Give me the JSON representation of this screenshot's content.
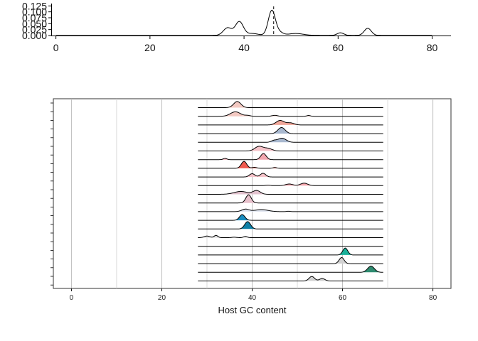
{
  "chart_data": [
    {
      "type": "area",
      "title": "",
      "xlabel": "",
      "ylabel": "",
      "xlim": [
        -1,
        84
      ],
      "ylim": [
        0,
        0.135
      ],
      "x_ticks": [
        0,
        20,
        40,
        60,
        80
      ],
      "y_ticks": [
        0.0,
        0.025,
        0.05,
        0.075,
        0.1,
        0.125
      ],
      "y_tick_labels": [
        "0.000",
        "0.025",
        "0.050",
        "0.075",
        "0.100",
        "0.125"
      ],
      "grid": false,
      "density_peaks": [
        {
          "x": 36.5,
          "y": 0.032,
          "sd": 0.9
        },
        {
          "x": 39,
          "y": 0.058,
          "sd": 0.85
        },
        {
          "x": 41.8,
          "y": 0.008,
          "sd": 1.2
        },
        {
          "x": 45.9,
          "y": 0.105,
          "sd": 0.75
        },
        {
          "x": 47.5,
          "y": 0.012,
          "sd": 0.8
        },
        {
          "x": 51,
          "y": 0.008,
          "sd": 1.6
        },
        {
          "x": 60.5,
          "y": 0.011,
          "sd": 0.7
        },
        {
          "x": 66.3,
          "y": 0.03,
          "sd": 0.75
        }
      ],
      "reference_line": {
        "x": 46.3,
        "style": "dashed"
      }
    },
    {
      "type": "area",
      "title": "",
      "xlabel": "Host GC content",
      "ylabel": "",
      "xlim": [
        -4,
        84
      ],
      "x_ticks": [
        0,
        20,
        40,
        60,
        80
      ],
      "grid": true,
      "legend": "none",
      "ridge_range": [
        28,
        69
      ],
      "ridges": [
        {
          "color": "#f3c9c2",
          "peaks": [
            {
              "x": 36.7,
              "h": 0.75,
              "sd": 0.8
            }
          ]
        },
        {
          "color": "#f3c9c2",
          "peaks": [
            {
              "x": 36.3,
              "h": 0.55,
              "sd": 1.1
            },
            {
              "x": 39,
              "h": 0.1,
              "sd": 0.6
            },
            {
              "x": 45,
              "h": 0.12,
              "sd": 0.6
            },
            {
              "x": 52.5,
              "h": 0.1,
              "sd": 0.4
            }
          ]
        },
        {
          "color": "#f1a79a",
          "peaks": [
            {
              "x": 46.2,
              "h": 0.55,
              "sd": 0.9
            },
            {
              "x": 48.5,
              "h": 0.25,
              "sd": 0.8
            }
          ]
        },
        {
          "color": "#a8b8cf",
          "peaks": [
            {
              "x": 46.5,
              "h": 0.75,
              "sd": 0.8
            }
          ]
        },
        {
          "color": "#a8b8cf",
          "peaks": [
            {
              "x": 46.6,
              "h": 0.5,
              "sd": 0.9
            },
            {
              "x": 44.8,
              "h": 0.2,
              "sd": 0.6
            }
          ]
        },
        {
          "color": "#f6c3c9",
          "peaks": [
            {
              "x": 41.5,
              "h": 0.55,
              "sd": 0.9
            },
            {
              "x": 43.5,
              "h": 0.3,
              "sd": 0.9
            }
          ]
        },
        {
          "color": "#f2a6ae",
          "peaks": [
            {
              "x": 42.5,
              "h": 0.75,
              "sd": 0.6
            },
            {
              "x": 34,
              "h": 0.15,
              "sd": 0.4
            }
          ]
        },
        {
          "color": "#ef5a4f",
          "peaks": [
            {
              "x": 38.2,
              "h": 0.85,
              "sd": 0.6
            },
            {
              "x": 40.5,
              "h": 0.12,
              "sd": 0.5
            },
            {
              "x": 45,
              "h": 0.1,
              "sd": 0.4
            }
          ]
        },
        {
          "color": "#f6c3c9",
          "peaks": [
            {
              "x": 40,
              "h": 0.4,
              "sd": 0.6
            },
            {
              "x": 42.4,
              "h": 0.45,
              "sd": 0.6
            }
          ]
        },
        {
          "color": "#f3a4ab",
          "peaks": [
            {
              "x": 48.2,
              "h": 0.2,
              "sd": 0.8
            },
            {
              "x": 51.5,
              "h": 0.3,
              "sd": 0.8
            },
            {
              "x": 43.5,
              "h": 0.05,
              "sd": 0.5
            }
          ]
        },
        {
          "color": "#e3c3cf",
          "peaks": [
            {
              "x": 37.5,
              "h": 0.35,
              "sd": 1.5
            },
            {
              "x": 41,
              "h": 0.45,
              "sd": 0.8
            }
          ]
        },
        {
          "color": "#e7c0cb",
          "peaks": [
            {
              "x": 39.2,
              "h": 1.0,
              "sd": 0.6
            }
          ]
        },
        {
          "color": "#dde3ee",
          "peaks": [
            {
              "x": 38.5,
              "h": 0.3,
              "sd": 0.8
            },
            {
              "x": 42,
              "h": 0.25,
              "sd": 1.5
            },
            {
              "x": 48,
              "h": 0.05,
              "sd": 0.4
            }
          ]
        },
        {
          "color": "#1a8dc0",
          "peaks": [
            {
              "x": 37.8,
              "h": 0.7,
              "sd": 0.6
            }
          ]
        },
        {
          "color": "#0d7fa6",
          "peaks": [
            {
              "x": 39,
              "h": 0.9,
              "sd": 0.65
            }
          ]
        },
        {
          "color": "#d9d9d9",
          "peaks": [
            {
              "x": 30,
              "h": 0.2,
              "sd": 0.6
            },
            {
              "x": 32,
              "h": 0.28,
              "sd": 0.4
            },
            {
              "x": 36,
              "h": 0.05,
              "sd": 0.5
            },
            {
              "x": 38.5,
              "h": 0.15,
              "sd": 0.4
            }
          ]
        },
        {
          "color": "#ffffff",
          "peaks": []
        },
        {
          "color": "#19b19a",
          "peaks": [
            {
              "x": 60.6,
              "h": 0.85,
              "sd": 0.55
            }
          ]
        },
        {
          "color": "#d2d2d2",
          "peaks": [
            {
              "x": 59.8,
              "h": 0.75,
              "sd": 0.55
            }
          ]
        },
        {
          "color": "#2f8c71",
          "peaks": [
            {
              "x": 66.3,
              "h": 0.75,
              "sd": 0.75
            }
          ]
        },
        {
          "color": "#d2d2d2",
          "peaks": [
            {
              "x": 53.2,
              "h": 0.55,
              "sd": 0.6
            },
            {
              "x": 55.5,
              "h": 0.3,
              "sd": 0.6
            }
          ]
        }
      ]
    }
  ]
}
